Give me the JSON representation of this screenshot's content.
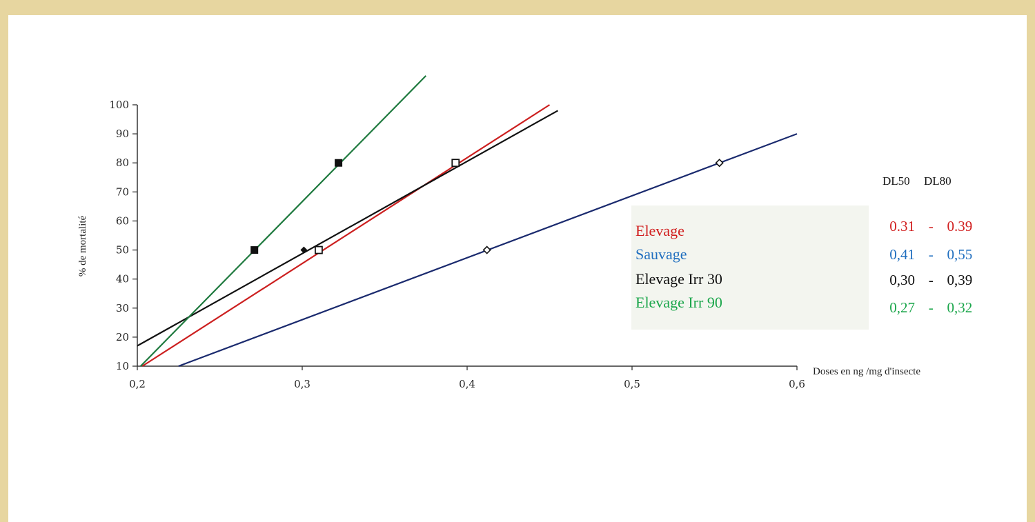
{
  "chart_data": {
    "type": "line",
    "title": "",
    "xlabel": "Doses en ng /mg d'insecte",
    "ylabel": "% de mortalité",
    "xlim": [
      0.2,
      0.6
    ],
    "ylim": [
      10,
      100
    ],
    "x_ticks": [
      "0,2",
      "0,3",
      "0,4",
      "0,5",
      "0,6"
    ],
    "y_ticks": [
      "10",
      "20",
      "30",
      "40",
      "50",
      "60",
      "70",
      "80",
      "90",
      "100"
    ],
    "series": [
      {
        "name": "Elevage",
        "color": "#cc1f1f",
        "line": [
          [
            0.203,
            10
          ],
          [
            0.45,
            100
          ]
        ],
        "points": [
          [
            0.31,
            50
          ],
          [
            0.393,
            80
          ]
        ],
        "marker": "open-square"
      },
      {
        "name": "Sauvage",
        "color": "#1a2a6e",
        "line": [
          [
            0.225,
            10
          ],
          [
            0.6,
            90
          ]
        ],
        "points": [
          [
            0.412,
            50
          ],
          [
            0.553,
            80
          ]
        ],
        "marker": "open-diamond"
      },
      {
        "name": "Elevage Irr 30",
        "color": "#111111",
        "line": [
          [
            0.2,
            17
          ],
          [
            0.455,
            98
          ]
        ],
        "points": [
          [
            0.301,
            50
          ]
        ],
        "marker": "filled-diamond"
      },
      {
        "name": "Elevage Irr 90",
        "color": "#1f7a3f",
        "line": [
          [
            0.202,
            10
          ],
          [
            0.375,
            110
          ]
        ],
        "points": [
          [
            0.271,
            50
          ],
          [
            0.322,
            80
          ]
        ],
        "marker": "filled-square"
      }
    ]
  },
  "legend": {
    "header_dl50": "DL50",
    "header_dl80": "DL80",
    "items": [
      {
        "label": "Elevage",
        "dl50": "0.31",
        "dl80": "0.39",
        "color": "#d11f1f"
      },
      {
        "label": "Sauvage",
        "dl50": "0,41",
        "dl80": "0,55",
        "color": "#1f6ebf"
      },
      {
        "label": "Elevage Irr 30",
        "dl50": "0,30",
        "dl80": "0,39",
        "color": "#111111"
      },
      {
        "label": "Elevage Irr 90",
        "dl50": "0,27",
        "dl80": "0,32",
        "color": "#1ba64b"
      }
    ],
    "separator": "-"
  }
}
